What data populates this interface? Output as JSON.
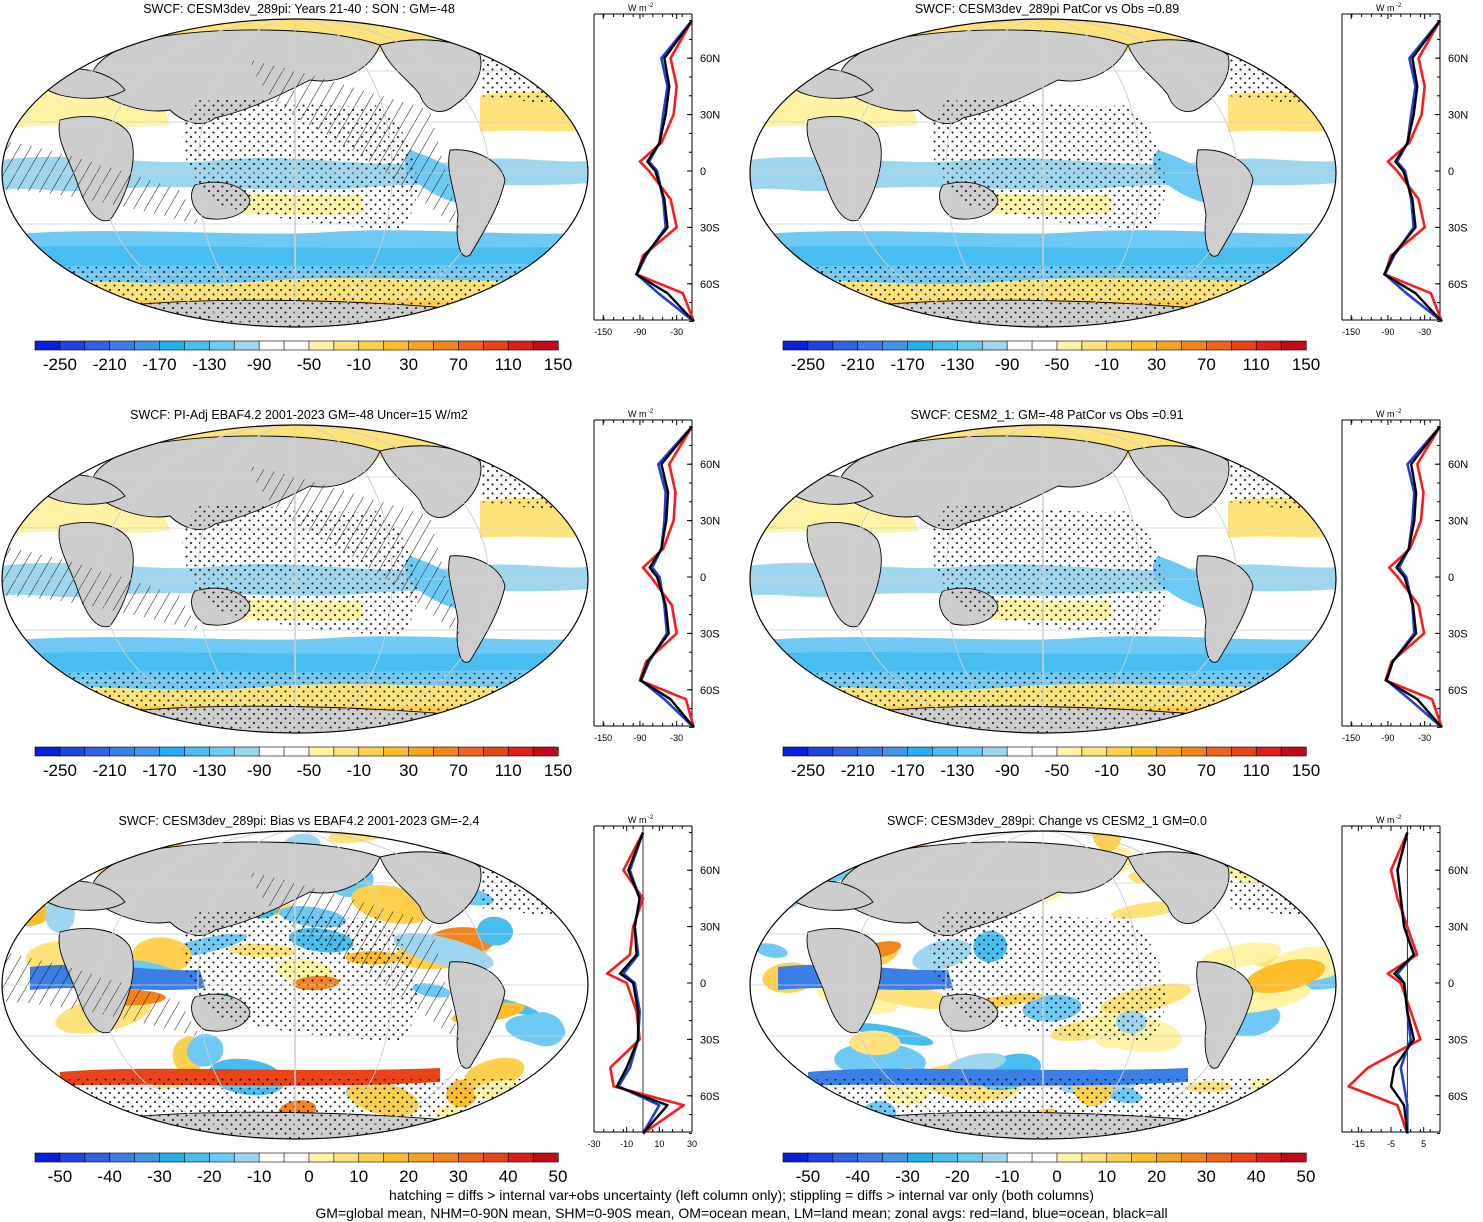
{
  "panels": [
    {
      "title": "SWCF: CESM3dev_289pi: Years 21-40 : SON : GM=-48",
      "cbar_ticks": [
        "-250",
        "-210",
        "-170",
        "-130",
        "-90",
        "-50",
        "-10",
        "30",
        "70",
        "110",
        "150"
      ],
      "x_ticks": [
        "-150",
        "-90",
        "-30"
      ],
      "mode": "clim",
      "hatch": true,
      "scheme": 0
    },
    {
      "title": "SWCF: CESM3dev_289pi PatCor vs Obs =0.89",
      "cbar_ticks": [
        "-250",
        "-210",
        "-170",
        "-130",
        "-90",
        "-50",
        "-10",
        "30",
        "70",
        "110",
        "150"
      ],
      "x_ticks": [
        "-150",
        "-90",
        "-30"
      ],
      "mode": "clim",
      "hatch": false,
      "scheme": 1
    },
    {
      "title": "SWCF: PI-Adj EBAF4.2 2001-2023 GM=-48 Uncer=15 W/m2",
      "cbar_ticks": [
        "-250",
        "-210",
        "-170",
        "-130",
        "-90",
        "-50",
        "-10",
        "30",
        "70",
        "110",
        "150"
      ],
      "x_ticks": [
        "-150",
        "-90",
        "-30"
      ],
      "mode": "clim",
      "hatch": true,
      "scheme": 2
    },
    {
      "title": "SWCF: CESM2_1: GM=-48 PatCor vs Obs =0.91",
      "cbar_ticks": [
        "-250",
        "-210",
        "-170",
        "-130",
        "-90",
        "-50",
        "-10",
        "30",
        "70",
        "110",
        "150"
      ],
      "x_ticks": [
        "-150",
        "-90",
        "-30"
      ],
      "mode": "clim",
      "hatch": false,
      "scheme": 3
    },
    {
      "title": "SWCF: CESM3dev_289pi: Bias vs EBAF4.2 2001-2023  GM=-2.4",
      "cbar_ticks": [
        "-50",
        "-40",
        "-30",
        "-20",
        "-10",
        "0",
        "10",
        "20",
        "30",
        "40",
        "50"
      ],
      "x_ticks": [
        "-30",
        "-10",
        "10",
        "30"
      ],
      "mode": "diff",
      "hatch": true,
      "scheme": 4
    },
    {
      "title": "SWCF: CESM3dev_289pi: Change vs CESM2_1 GM=0.0",
      "cbar_ticks": [
        "-50",
        "-40",
        "-30",
        "-20",
        "-10",
        "0",
        "10",
        "20",
        "30",
        "40",
        "50"
      ],
      "x_ticks": [
        "-15",
        "-5",
        "5"
      ],
      "mode": "diff",
      "hatch": false,
      "scheme": 5
    }
  ],
  "lat_ticks": [
    "60N",
    "30N",
    "0",
    "30S",
    "60S"
  ],
  "units_label": "W m",
  "units_exp": "-2",
  "colors": {
    "land": "#cdcdcd",
    "ocean_line": "#1f3fd6",
    "land_line": "#ff1a1a",
    "all_line": "#000000",
    "cbar": [
      "#0a1fd9",
      "#1f45e0",
      "#2f63e4",
      "#3a7ee6",
      "#3f96e8",
      "#25aef0",
      "#47bdf0",
      "#6ecaf4",
      "#9fd6ef",
      "#ffffff",
      "#ffffff",
      "#fff4a6",
      "#ffe37a",
      "#ffd04e",
      "#ffbd2a",
      "#f7a21f",
      "#f2841b",
      "#ee641a",
      "#e84418",
      "#dc2018",
      "#c3081a"
    ]
  },
  "chart_data": [
    {
      "type": "heatmap",
      "title": "SWCF: CESM3dev_289pi: Years 21-40 : SON : GM=-48",
      "zonal_mean": {
        "lat": [
          80,
          60,
          45,
          30,
          15,
          5,
          0,
          -15,
          -30,
          -45,
          -55,
          -65,
          -80
        ],
        "ocean": [
          -5,
          -55,
          -45,
          -52,
          -58,
          -75,
          -62,
          -52,
          -48,
          -80,
          -95,
          -60,
          -2
        ],
        "land": [
          -5,
          -40,
          -30,
          -35,
          -55,
          -90,
          -75,
          -40,
          -30,
          -85,
          -95,
          -20,
          -2
        ],
        "all": [
          -5,
          -50,
          -42,
          -48,
          -58,
          -78,
          -65,
          -50,
          -45,
          -82,
          -96,
          -45,
          -2
        ]
      }
    },
    {
      "type": "heatmap",
      "title": "SWCF: CESM3dev_289pi PatCor vs Obs =0.89",
      "zonal_mean": {
        "lat": [
          80,
          60,
          45,
          30,
          15,
          5,
          0,
          -15,
          -30,
          -45,
          -55,
          -65,
          -80
        ],
        "ocean": [
          -5,
          -55,
          -45,
          -52,
          -58,
          -75,
          -62,
          -52,
          -48,
          -80,
          -95,
          -60,
          -2
        ],
        "land": [
          -5,
          -40,
          -30,
          -35,
          -55,
          -90,
          -75,
          -40,
          -30,
          -85,
          -95,
          -20,
          -2
        ],
        "all": [
          -5,
          -50,
          -42,
          -48,
          -58,
          -78,
          -65,
          -50,
          -45,
          -82,
          -96,
          -45,
          -2
        ]
      }
    },
    {
      "type": "heatmap",
      "title": "SWCF: PI-Adj EBAF4.2 2001-2023 GM=-48 Uncer=15 W/m2",
      "zonal_mean": {
        "lat": [
          80,
          60,
          45,
          30,
          15,
          5,
          0,
          -15,
          -30,
          -45,
          -55,
          -65,
          -80
        ],
        "ocean": [
          -5,
          -60,
          -48,
          -50,
          -55,
          -70,
          -58,
          -50,
          -46,
          -75,
          -88,
          -50,
          -2
        ],
        "land": [
          -5,
          -42,
          -32,
          -35,
          -52,
          -85,
          -72,
          -38,
          -30,
          -80,
          -90,
          -15,
          -2
        ],
        "all": [
          -5,
          -55,
          -44,
          -47,
          -55,
          -74,
          -62,
          -48,
          -43,
          -77,
          -89,
          -40,
          -2
        ]
      }
    },
    {
      "type": "heatmap",
      "title": "SWCF: CESM2_1: GM=-48 PatCor vs Obs =0.91",
      "zonal_mean": {
        "lat": [
          80,
          60,
          45,
          30,
          15,
          5,
          0,
          -15,
          -30,
          -45,
          -55,
          -65,
          -80
        ],
        "ocean": [
          -5,
          -58,
          -47,
          -50,
          -56,
          -72,
          -60,
          -50,
          -47,
          -82,
          -92,
          -55,
          -2
        ],
        "land": [
          -5,
          -42,
          -32,
          -36,
          -54,
          -88,
          -74,
          -40,
          -31,
          -84,
          -94,
          -18,
          -2
        ],
        "all": [
          -5,
          -52,
          -44,
          -47,
          -56,
          -76,
          -63,
          -49,
          -44,
          -82,
          -93,
          -42,
          -2
        ]
      }
    },
    {
      "type": "heatmap",
      "title": "SWCF: CESM3dev_289pi: Bias vs EBAF4.2 2001-2023  GM=-2.4",
      "zonal_mean": {
        "lat": [
          80,
          60,
          45,
          30,
          15,
          5,
          0,
          -15,
          -30,
          -45,
          -55,
          -65,
          -80
        ],
        "ocean": [
          0,
          -8,
          -2,
          -5,
          -3,
          -12,
          -5,
          -2,
          -3,
          -8,
          -15,
          10,
          0
        ],
        "land": [
          0,
          -12,
          0,
          -6,
          -8,
          -22,
          -10,
          -4,
          -2,
          -20,
          -18,
          25,
          0
        ],
        "all": [
          0,
          -9,
          -2,
          -5,
          -4,
          -14,
          -6,
          -3,
          -3,
          -10,
          -16,
          15,
          0
        ]
      }
    },
    {
      "type": "heatmap",
      "title": "SWCF: CESM3dev_289pi: Change vs CESM2_1 GM=0.0",
      "zonal_mean": {
        "lat": [
          80,
          60,
          45,
          30,
          15,
          5,
          0,
          -15,
          -30,
          -45,
          -55,
          -65,
          -80
        ],
        "ocean": [
          0,
          -3,
          -2,
          -1,
          2,
          -3,
          -1,
          0,
          1,
          -2,
          -1,
          0,
          0
        ],
        "land": [
          0,
          -5,
          -3,
          0,
          3,
          -6,
          -2,
          1,
          4,
          -12,
          -18,
          -3,
          0
        ],
        "all": [
          0,
          -3,
          -2,
          -1,
          2,
          -4,
          -1,
          0,
          2,
          -4,
          -5,
          -1,
          0
        ]
      }
    }
  ],
  "caption": {
    "line1": "hatching = diffs > internal var+obs uncertainty (left column only); stippling = diffs > internal var only (both columns)",
    "line2": "GM=global mean, NHM=0-90N mean, SHM=0-90S mean, OM=ocean mean, LM=land mean; zonal avgs: red=land, blue=ocean, black=all"
  }
}
